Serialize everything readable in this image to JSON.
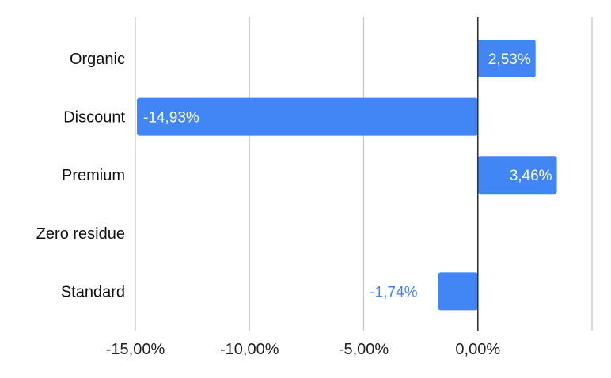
{
  "chart_data": {
    "type": "bar",
    "orientation": "horizontal",
    "categories": [
      "Organic",
      "Discount",
      "Premium",
      "Zero residue",
      "Standard"
    ],
    "values": [
      2.53,
      -14.93,
      3.46,
      null,
      -1.74
    ],
    "data_labels": [
      "2,53%",
      "-14,93%",
      "3,46%",
      "",
      "-1,74%"
    ],
    "xlim": [
      -15,
      5
    ],
    "x_ticks": [
      -15,
      -10,
      -5,
      0
    ],
    "x_tick_labels": [
      "-15,00%",
      "-10,00%",
      "-5,00%",
      "0,00%"
    ],
    "grid": true,
    "title": "",
    "xlabel": "",
    "ylabel": "",
    "colors": {
      "bar": "#4285f4",
      "grid": "#cccccc",
      "zero_line": "#333333",
      "label_inside": "#ffffff",
      "label_outside": "#4285f4"
    }
  }
}
